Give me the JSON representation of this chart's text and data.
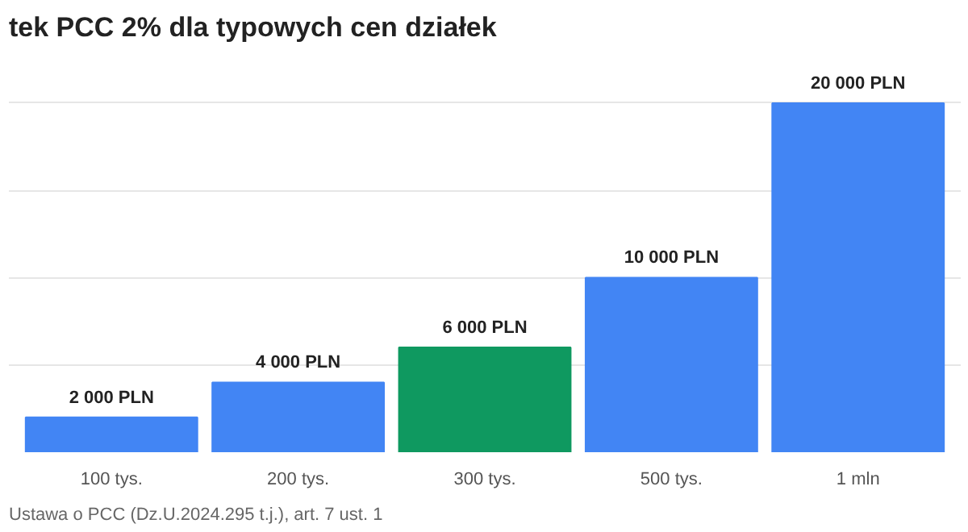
{
  "chart_data": {
    "type": "bar",
    "title": "tek PCC 2% dla typowych cen działek",
    "categories": [
      "100 tys.",
      "200 tys.",
      "300 tys.",
      "500 tys.",
      "1 mln"
    ],
    "values": [
      2000,
      4000,
      6000,
      10000,
      20000
    ],
    "colors": [
      "#4285f4",
      "#4285f4",
      "#0f9960",
      "#4285f4",
      "#4285f4"
    ],
    "value_labels": [
      "2 000 PLN",
      "4 000 PLN",
      "6 000 PLN",
      "10 000 PLN",
      "20 000 PLN"
    ],
    "grid": "y",
    "tick_labels": "x",
    "data_labels": true,
    "annotations": [
      "Ustawa o PCC (Dz.U.2024.295 t.j.), art. 7 ust. 1"
    ]
  }
}
